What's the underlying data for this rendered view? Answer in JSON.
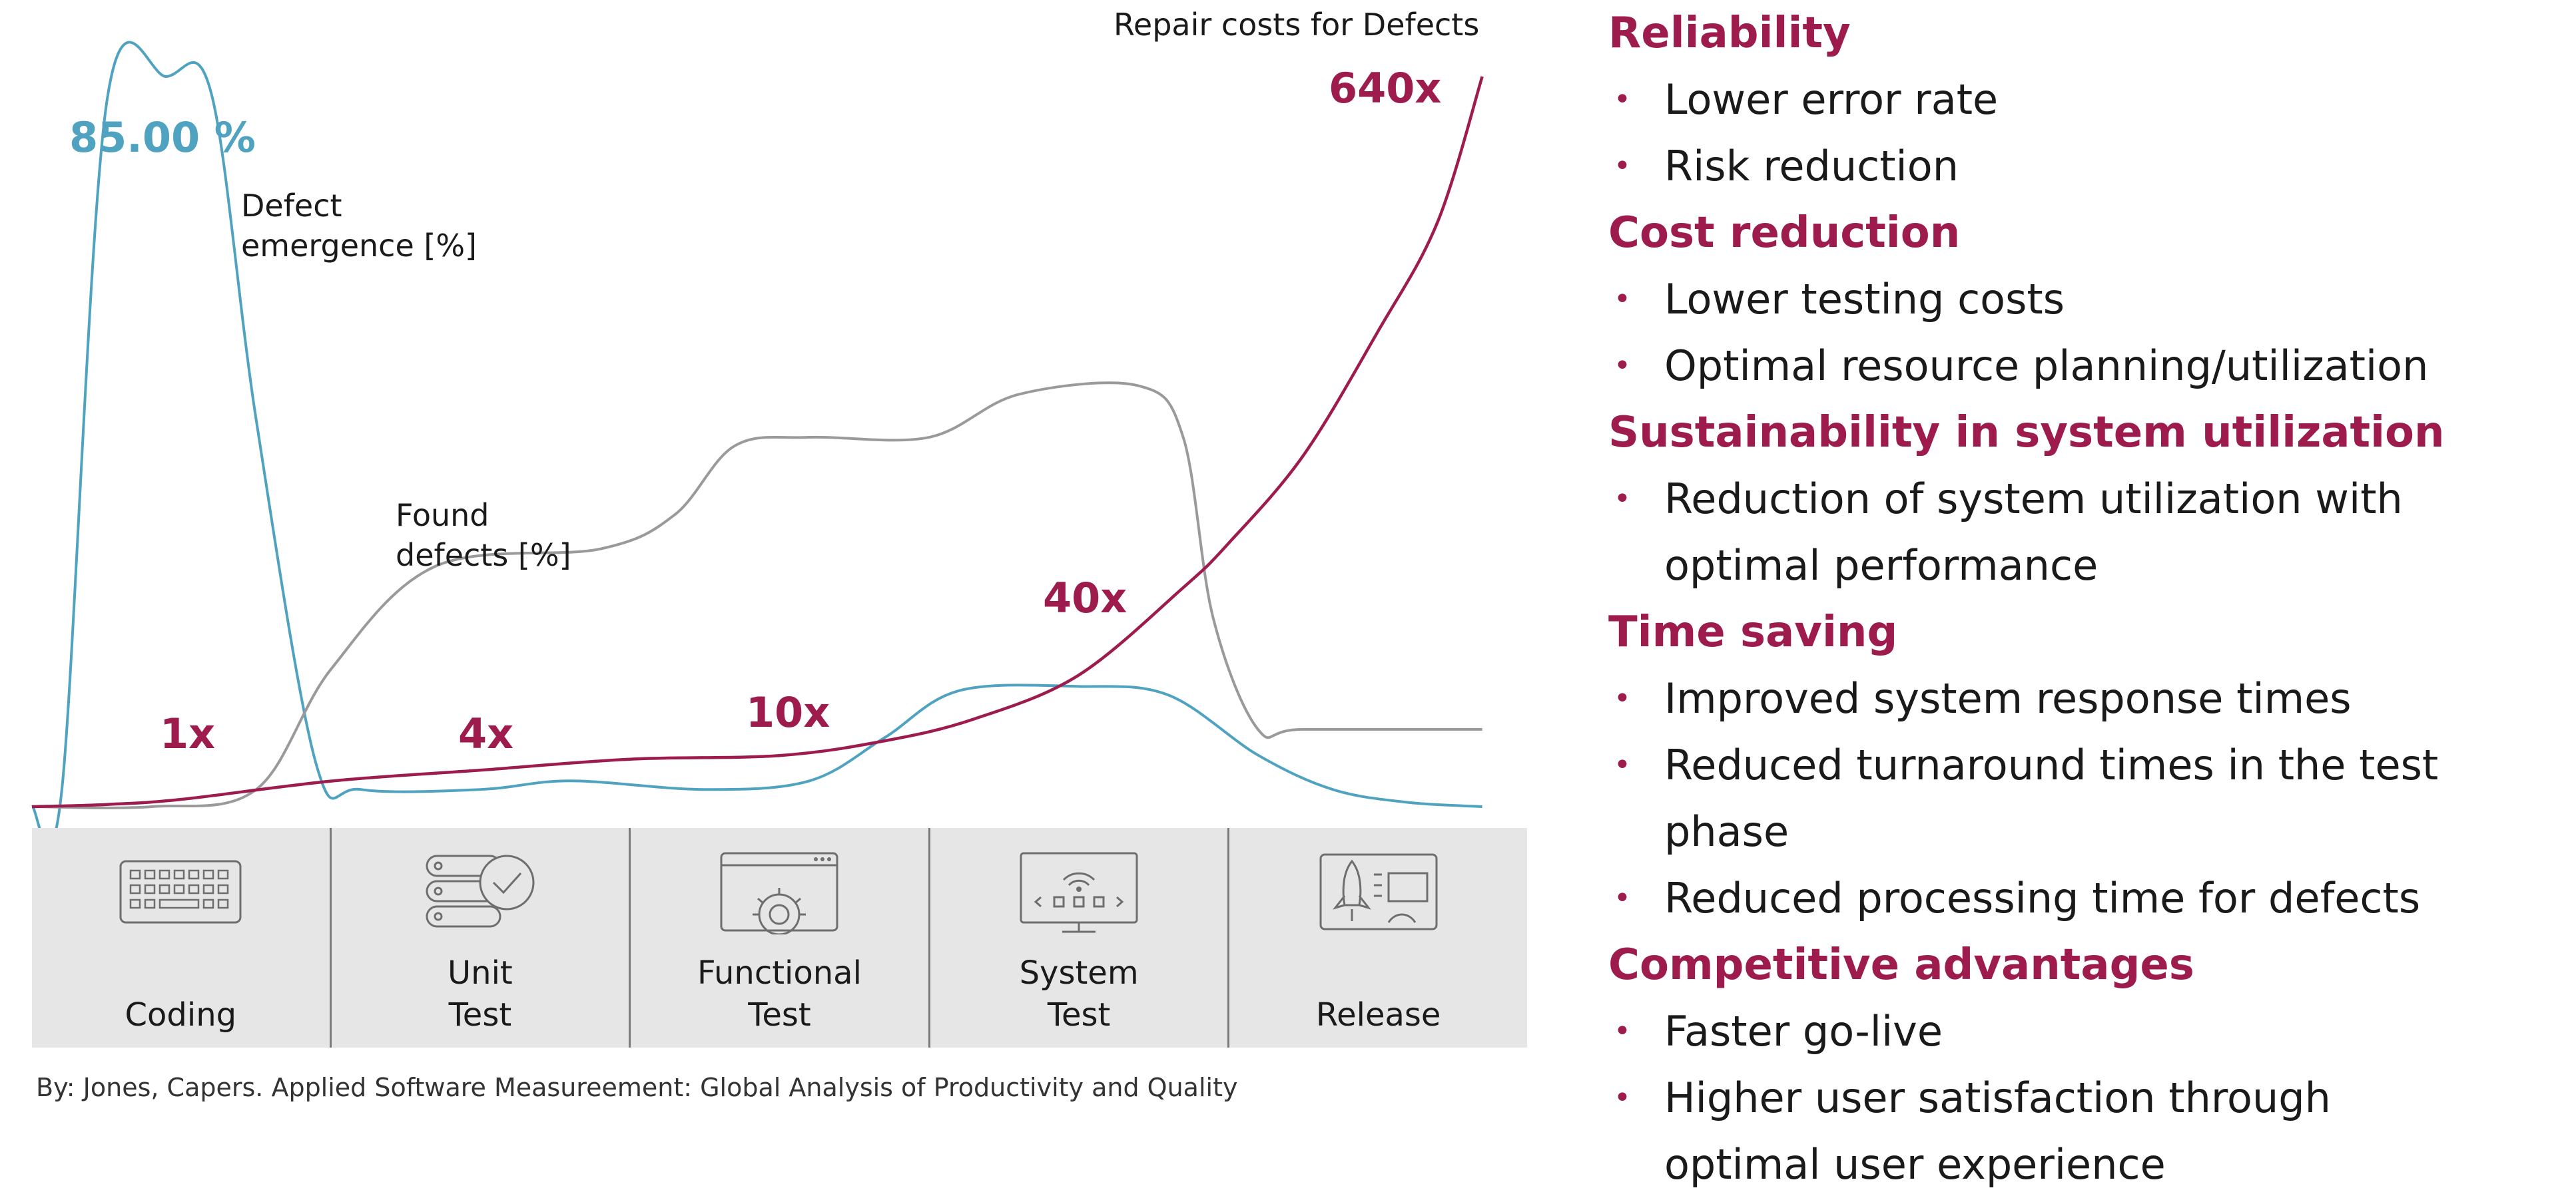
{
  "chart_data": {
    "type": "line",
    "x_categories": [
      "Coding",
      "Unit\nTest",
      "Functional\nTest",
      "System\nTest",
      "Release"
    ],
    "series": [
      {
        "name": "Defect\nemergence [%]",
        "color": "#4fa3c0",
        "peak_label": "85.00 %",
        "values": [
          [
            0.0,
            0
          ],
          [
            0.02,
            2
          ],
          [
            0.05,
            82
          ],
          [
            0.09,
            85
          ],
          [
            0.12,
            83
          ],
          [
            0.15,
            45
          ],
          [
            0.19,
            5
          ],
          [
            0.22,
            2
          ],
          [
            0.3,
            2
          ],
          [
            0.36,
            3
          ],
          [
            0.45,
            2
          ],
          [
            0.52,
            3
          ],
          [
            0.57,
            8
          ],
          [
            0.62,
            13.5
          ],
          [
            0.7,
            14
          ],
          [
            0.76,
            13
          ],
          [
            0.82,
            6
          ],
          [
            0.87,
            2
          ],
          [
            0.92,
            0.5
          ],
          [
            0.97,
            0
          ]
        ]
      },
      {
        "name": "Found\ndefects [%]",
        "color": "#9a9a9a",
        "values": [
          [
            0.0,
            0
          ],
          [
            0.08,
            0
          ],
          [
            0.15,
            2
          ],
          [
            0.2,
            16
          ],
          [
            0.27,
            28
          ],
          [
            0.38,
            30
          ],
          [
            0.43,
            34
          ],
          [
            0.47,
            42
          ],
          [
            0.52,
            43
          ],
          [
            0.6,
            43
          ],
          [
            0.66,
            48
          ],
          [
            0.74,
            49
          ],
          [
            0.77,
            43
          ],
          [
            0.79,
            22
          ],
          [
            0.82,
            9
          ],
          [
            0.85,
            9
          ],
          [
            0.97,
            9
          ]
        ]
      },
      {
        "name": "Repair costs for Defects",
        "color": "#9e1c4d",
        "values": [
          [
            0.0,
            0
          ],
          [
            0.05,
            0.3
          ],
          [
            0.1,
            1
          ],
          [
            0.2,
            3.5
          ],
          [
            0.3,
            5
          ],
          [
            0.4,
            6.5
          ],
          [
            0.5,
            7
          ],
          [
            0.57,
            9
          ],
          [
            0.63,
            12
          ],
          [
            0.7,
            18
          ],
          [
            0.77,
            30
          ],
          [
            0.8,
            36
          ],
          [
            0.85,
            48
          ],
          [
            0.9,
            65
          ],
          [
            0.94,
            80
          ],
          [
            0.97,
            100
          ]
        ]
      }
    ],
    "multipliers": [
      "1x",
      "4x",
      "10x",
      "40x",
      "640x"
    ],
    "grid": false,
    "source": "By: Jones, Capers. Applied Software Measureement: Global Analysis of Productivity and Quality"
  },
  "benefits": [
    {
      "heading": "Reliability",
      "items": [
        "Lower error rate",
        "Risk reduction"
      ]
    },
    {
      "heading": "Cost reduction",
      "items": [
        "Lower testing costs",
        "Optimal resource planning/utilization"
      ]
    },
    {
      "heading": "Sustainability in system utilization",
      "items": [
        "Reduction of system utilization with\noptimal performance"
      ]
    },
    {
      "heading": "Time saving",
      "items": [
        "Improved system response times",
        "Reduced turnaround times in the test phase",
        "Reduced processing time for defects"
      ]
    },
    {
      "heading": "Competitive advantages",
      "items": [
        "Faster go-live",
        "Higher user satisfaction through\noptimal user experience"
      ]
    }
  ],
  "phase_icons": [
    "keyboard-icon",
    "server-check-icon",
    "browser-gear-icon",
    "monitor-wifi-icon",
    "rocket-dashboard-icon"
  ],
  "colors": {
    "accent": "#9e1c4d",
    "defect_emergence": "#4fa3c0",
    "found_defects": "#9a9a9a",
    "phase_bar": "#e6e6e6"
  }
}
